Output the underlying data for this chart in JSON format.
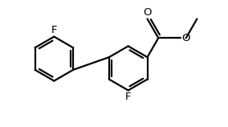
{
  "bg_color": "#ffffff",
  "line_color": "#000000",
  "line_width": 1.6,
  "font_size": 9.5,
  "F_left_label": "F",
  "F_right_label": "F",
  "O_carbonyl_label": "O",
  "O_ester_label": "O"
}
